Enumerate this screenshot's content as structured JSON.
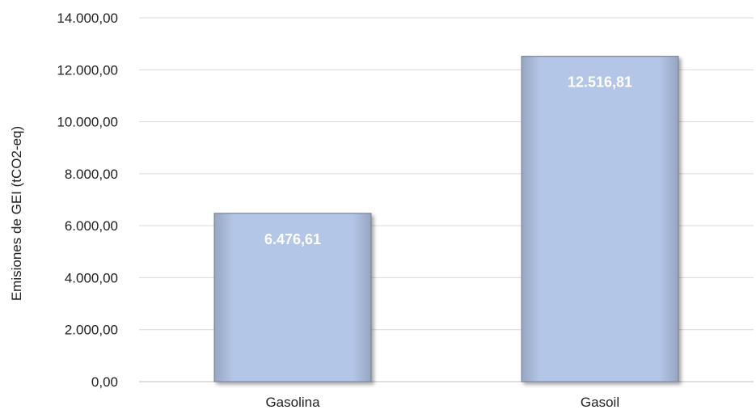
{
  "chart_data": {
    "type": "bar",
    "title": "",
    "xlabel": "",
    "ylabel": "Emisiones de GEI (tCO2-eq)",
    "categories": [
      "Gasolina",
      "Gasoil"
    ],
    "values": [
      6476.61,
      12516.81
    ],
    "value_labels": [
      "6.476,61",
      "12.516,81"
    ],
    "ylim": [
      0,
      14000
    ],
    "yticks": [
      0,
      2000,
      4000,
      6000,
      8000,
      10000,
      12000,
      14000
    ],
    "ytick_labels": [
      "0,00",
      "2.000,00",
      "4.000,00",
      "6.000,00",
      "8.000,00",
      "10.000,00",
      "12.000,00",
      "14.000,00"
    ],
    "grid": true,
    "legend": "none",
    "bar_color": "#b4c6e7",
    "bar_edge_color": "#7d8796"
  }
}
